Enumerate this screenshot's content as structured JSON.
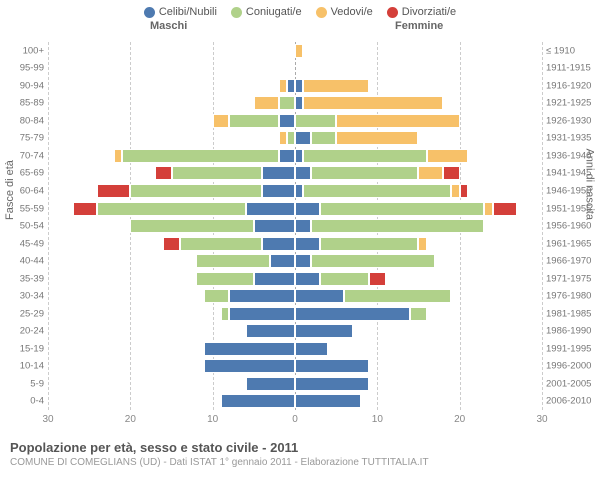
{
  "legend": [
    {
      "label": "Celibi/Nubili",
      "color": "#4e7ab0"
    },
    {
      "label": "Coniugati/e",
      "color": "#b0d18a"
    },
    {
      "label": "Vedovi/e",
      "color": "#f7c169"
    },
    {
      "label": "Divorziati/e",
      "color": "#d43f3a"
    }
  ],
  "genders": {
    "left": "Maschi",
    "right": "Femmine"
  },
  "axis_titles": {
    "left": "Fasce di età",
    "right": "Anni di nascita"
  },
  "title": "Popolazione per età, sesso e stato civile - 2011",
  "subtitle": "COMUNE DI COMEGLIANS (UD) - Dati ISTAT 1° gennaio 2011 - Elaborazione TUTTITALIA.IT",
  "xmax": 30,
  "xticks": [
    30,
    20,
    10,
    0,
    10,
    20,
    30
  ],
  "grid_color": "#cccccc",
  "center_color": "#aaaaaa",
  "colors": {
    "single": "#4e7ab0",
    "married": "#b0d18a",
    "widowed": "#f7c169",
    "divorced": "#d43f3a"
  },
  "rows": [
    {
      "age": "100+",
      "birth": "≤ 1910",
      "m": [
        0,
        0,
        0,
        0
      ],
      "f": [
        0,
        0,
        1,
        0
      ]
    },
    {
      "age": "95-99",
      "birth": "1911-1915",
      "m": [
        0,
        0,
        0,
        0
      ],
      "f": [
        0,
        0,
        0,
        0
      ]
    },
    {
      "age": "90-94",
      "birth": "1916-1920",
      "m": [
        1,
        0,
        1,
        0
      ],
      "f": [
        1,
        0,
        8,
        0
      ]
    },
    {
      "age": "85-89",
      "birth": "1921-1925",
      "m": [
        0,
        2,
        3,
        0
      ],
      "f": [
        1,
        0,
        17,
        0
      ]
    },
    {
      "age": "80-84",
      "birth": "1926-1930",
      "m": [
        2,
        6,
        2,
        0
      ],
      "f": [
        0,
        5,
        15,
        0
      ]
    },
    {
      "age": "75-79",
      "birth": "1931-1935",
      "m": [
        0,
        1,
        1,
        0
      ],
      "f": [
        2,
        3,
        10,
        0
      ]
    },
    {
      "age": "70-74",
      "birth": "1936-1940",
      "m": [
        2,
        19,
        1,
        0
      ],
      "f": [
        1,
        15,
        5,
        0
      ]
    },
    {
      "age": "65-69",
      "birth": "1941-1945",
      "m": [
        4,
        11,
        0,
        2
      ],
      "f": [
        2,
        13,
        3,
        2
      ]
    },
    {
      "age": "60-64",
      "birth": "1946-1950",
      "m": [
        4,
        16,
        0,
        4
      ],
      "f": [
        1,
        18,
        1,
        1
      ]
    },
    {
      "age": "55-59",
      "birth": "1951-1955",
      "m": [
        6,
        18,
        0,
        3
      ],
      "f": [
        3,
        20,
        1,
        3
      ]
    },
    {
      "age": "50-54",
      "birth": "1956-1960",
      "m": [
        5,
        15,
        0,
        0
      ],
      "f": [
        2,
        21,
        0,
        0
      ]
    },
    {
      "age": "45-49",
      "birth": "1961-1965",
      "m": [
        4,
        10,
        0,
        2
      ],
      "f": [
        3,
        12,
        1,
        0
      ]
    },
    {
      "age": "40-44",
      "birth": "1966-1970",
      "m": [
        3,
        9,
        0,
        0
      ],
      "f": [
        2,
        15,
        0,
        0
      ]
    },
    {
      "age": "35-39",
      "birth": "1971-1975",
      "m": [
        5,
        7,
        0,
        0
      ],
      "f": [
        3,
        6,
        0,
        2
      ]
    },
    {
      "age": "30-34",
      "birth": "1976-1980",
      "m": [
        8,
        3,
        0,
        0
      ],
      "f": [
        6,
        13,
        0,
        0
      ]
    },
    {
      "age": "25-29",
      "birth": "1981-1985",
      "m": [
        8,
        1,
        0,
        0
      ],
      "f": [
        14,
        2,
        0,
        0
      ]
    },
    {
      "age": "20-24",
      "birth": "1986-1990",
      "m": [
        6,
        0,
        0,
        0
      ],
      "f": [
        7,
        0,
        0,
        0
      ]
    },
    {
      "age": "15-19",
      "birth": "1991-1995",
      "m": [
        11,
        0,
        0,
        0
      ],
      "f": [
        4,
        0,
        0,
        0
      ]
    },
    {
      "age": "10-14",
      "birth": "1996-2000",
      "m": [
        11,
        0,
        0,
        0
      ],
      "f": [
        9,
        0,
        0,
        0
      ]
    },
    {
      "age": "5-9",
      "birth": "2001-2005",
      "m": [
        6,
        0,
        0,
        0
      ],
      "f": [
        9,
        0,
        0,
        0
      ]
    },
    {
      "age": "0-4",
      "birth": "2006-2010",
      "m": [
        9,
        0,
        0,
        0
      ],
      "f": [
        8,
        0,
        0,
        0
      ]
    }
  ]
}
